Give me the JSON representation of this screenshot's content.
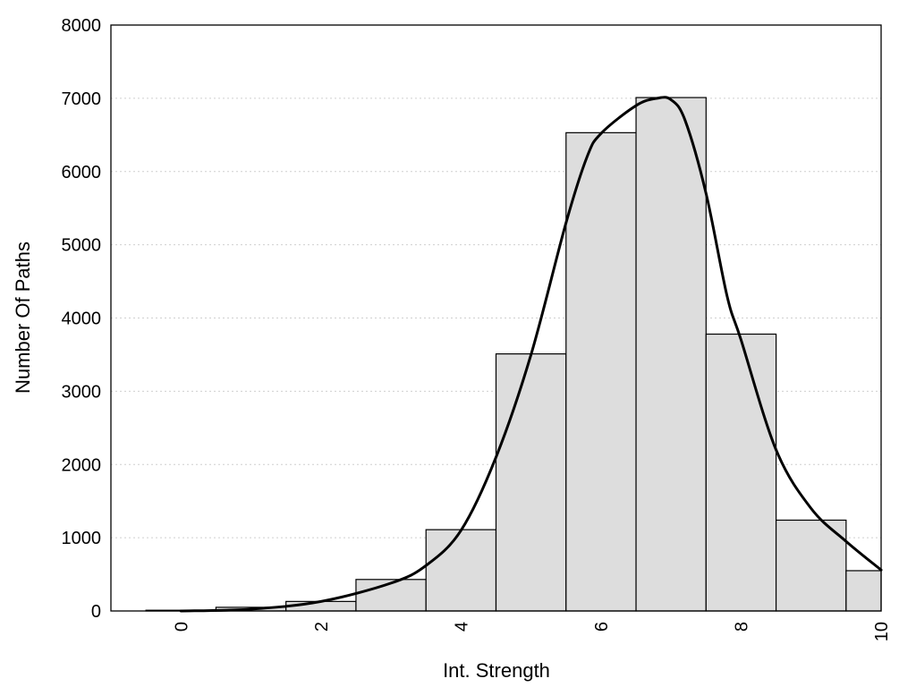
{
  "chart_data": {
    "type": "bar",
    "xlabel": "Int. Strength",
    "ylabel": "Number Of Paths",
    "xlim": [
      -1,
      10
    ],
    "ylim": [
      0,
      8000
    ],
    "xticks": [
      "0",
      "2",
      "4",
      "6",
      "8",
      "10"
    ],
    "yticks": [
      "0",
      "1000",
      "2000",
      "3000",
      "4000",
      "5000",
      "6000",
      "7000",
      "8000"
    ],
    "grid": "horizontal dotted",
    "bars": {
      "x": [
        0,
        1,
        2,
        3,
        4,
        5,
        6,
        7,
        8,
        9,
        10
      ],
      "values": [
        10,
        50,
        130,
        430,
        1110,
        3510,
        6530,
        7010,
        3780,
        1240,
        550
      ],
      "color": "#dddddd"
    },
    "curve": {
      "x": [
        0,
        1,
        2,
        3,
        3.5,
        4,
        4.5,
        5,
        5.5,
        5.8,
        6,
        6.5,
        6.8,
        7,
        7.2,
        7.5,
        7.8,
        8,
        8.5,
        9,
        9.5,
        10
      ],
      "values": [
        0,
        25,
        130,
        380,
        620,
        1100,
        2100,
        3500,
        5300,
        6200,
        6520,
        6900,
        7000,
        6980,
        6700,
        5700,
        4300,
        3700,
        2200,
        1400,
        950,
        560
      ],
      "color": "#000000"
    }
  }
}
